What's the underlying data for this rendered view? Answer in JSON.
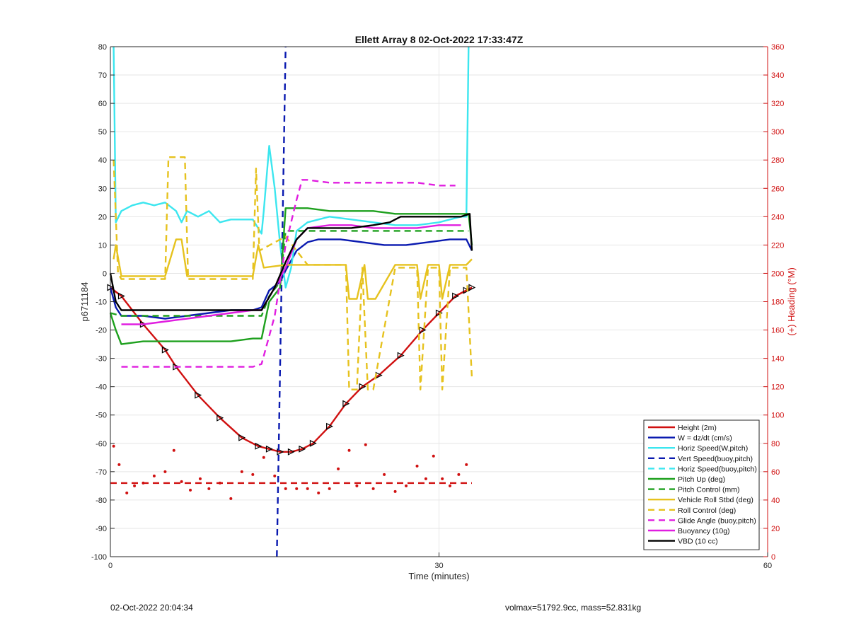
{
  "chart_data": {
    "type": "line",
    "title": "Ellett Array 8 02-Oct-2022 17:33:47Z",
    "xlabel": "Time (minutes)",
    "ylabel": "p6711184",
    "y2label": "(+) Heading (°M)",
    "xlim": [
      0,
      60
    ],
    "ylim": [
      -100,
      80
    ],
    "y2lim": [
      0,
      360
    ],
    "xticks": [
      "0",
      "30",
      "60"
    ],
    "yticks": [
      "80",
      "70",
      "60",
      "50",
      "40",
      "30",
      "20",
      "10",
      "0",
      "-10",
      "-20",
      "-30",
      "-40",
      "-50",
      "-60",
      "-70",
      "-80",
      "-90",
      "-100"
    ],
    "y2ticks": [
      "360",
      "340",
      "320",
      "300",
      "280",
      "260",
      "240",
      "220",
      "200",
      "180",
      "160",
      "140",
      "120",
      "100",
      "80",
      "60",
      "40",
      "20",
      "0"
    ],
    "grid": true,
    "legend_position": "bottom-right",
    "colors": {
      "red": "#d01010",
      "blue": "#0a1ab0",
      "cyan": "#3ce6ef",
      "green": "#1ea01e",
      "yellow": "#e6c21e",
      "magenta": "#e01ee0",
      "black": "#000000",
      "axis_right": "#d01010"
    },
    "series": [
      {
        "name": "Height (2m)",
        "color": "#d01010",
        "style": "solid",
        "marker": "triangle",
        "x": [
          0,
          1,
          3,
          5,
          6,
          8,
          10,
          12,
          13.5,
          14.5,
          15.5,
          16.5,
          17.5,
          18.5,
          20,
          21.5,
          23,
          24.5,
          26.5,
          28.5,
          30,
          31.5,
          32.5,
          33
        ],
        "y": [
          -5,
          -8,
          -18,
          -27,
          -33,
          -43,
          -51,
          -58,
          -61,
          -62,
          -63,
          -63,
          -62,
          -60,
          -54,
          -46,
          -40,
          -36,
          -29,
          -20,
          -14,
          -8,
          -6,
          -5
        ]
      },
      {
        "name": "W = dz/dt (cm/s)",
        "color": "#0a1ab0",
        "style": "solid",
        "x": [
          0,
          0.5,
          1,
          3,
          5,
          7,
          9,
          11,
          13,
          13.8,
          14.5,
          15.5,
          16,
          17,
          18,
          19,
          21,
          23,
          25,
          27,
          29,
          31,
          32.5,
          33
        ],
        "y": [
          -5,
          -12,
          -15,
          -15,
          -16,
          -15,
          -14,
          -13,
          -13,
          -12,
          -6,
          -3,
          1,
          8,
          11,
          12,
          12,
          11,
          10,
          10,
          11,
          12,
          12,
          8
        ]
      },
      {
        "name": "Horiz Speed(W,pitch)",
        "color": "#3ce6ef",
        "style": "solid",
        "x": [
          0.3,
          0.5,
          1,
          2,
          3,
          4,
          5,
          6,
          6.5,
          7,
          8,
          9,
          10,
          11,
          12,
          13,
          13.8,
          14,
          14.5,
          15,
          15.5,
          16,
          16.5,
          17,
          18,
          20,
          22,
          24,
          26,
          28,
          30,
          31,
          32,
          32.5,
          32.7
        ],
        "y": [
          80,
          18,
          22,
          24,
          25,
          24,
          25,
          22,
          18,
          22,
          20,
          22,
          18,
          19,
          19,
          19,
          14,
          22,
          45,
          30,
          10,
          -5,
          2,
          15,
          18,
          20,
          19,
          18,
          17,
          17,
          18,
          19,
          20,
          20,
          80
        ]
      },
      {
        "name": "Vert Speed(buoy,pitch)",
        "color": "#0a1ab0",
        "style": "dashed",
        "x": [
          15.2,
          16.0
        ],
        "y": [
          -100,
          80
        ]
      },
      {
        "name": "Horiz Speed(buoy,pitch)",
        "color": "#3ce6ef",
        "style": "dashed",
        "x": [
          15.6,
          16.0
        ],
        "y": [
          0,
          3
        ]
      },
      {
        "name": "Pitch Up (deg)",
        "color": "#1ea01e",
        "style": "solid",
        "x": [
          0,
          0.5,
          1,
          3,
          5,
          7,
          9,
          11,
          13,
          13.8,
          14.5,
          15.5,
          16,
          17,
          18,
          20,
          22,
          24,
          26,
          28,
          30,
          32,
          32.7,
          33
        ],
        "y": [
          -14,
          -20,
          -25,
          -24,
          -24,
          -24,
          -24,
          -24,
          -23,
          -23,
          -10,
          -5,
          23,
          23,
          23,
          22,
          22,
          22,
          21,
          21,
          21,
          21,
          21,
          10
        ]
      },
      {
        "name": "Pitch Control (mm)",
        "color": "#1ea01e",
        "style": "dashed",
        "x": [
          0,
          1,
          13.8,
          14.5,
          15.5,
          16,
          17,
          32.7
        ],
        "y": [
          -14,
          -15,
          -15,
          -8,
          -3,
          15,
          15,
          15
        ]
      },
      {
        "name": "Vehicle Roll Stbd (deg)",
        "color": "#e6c21e",
        "style": "solid",
        "x": [
          0.3,
          0.5,
          1,
          5,
          6,
          6.5,
          7,
          13,
          13.5,
          14,
          16,
          18,
          20,
          21.5,
          21.8,
          22.5,
          23.2,
          23.5,
          24.2,
          26,
          28,
          28.3,
          29,
          30,
          30.3,
          31,
          32.5,
          33
        ],
        "y": [
          5,
          10,
          -1,
          -1,
          12,
          12,
          -1,
          -1,
          10,
          2,
          3,
          3,
          3,
          3,
          -9,
          -9,
          3,
          -9,
          -9,
          3,
          3,
          -9,
          3,
          3,
          -9,
          3,
          3,
          5
        ]
      },
      {
        "name": "Roll Control (deg)",
        "color": "#e6c21e",
        "style": "dashed",
        "x": [
          0.3,
          0.7,
          1,
          5,
          5.3,
          6.8,
          7.1,
          13,
          13.3,
          13.6,
          16,
          18,
          21.5,
          21.8,
          22.5,
          23,
          23.5,
          24,
          26,
          28,
          28.3,
          29,
          30,
          30.3,
          31,
          32.5,
          33
        ],
        "y": [
          40,
          0,
          -2,
          -2,
          41,
          41,
          -2,
          -2,
          37,
          8,
          13,
          3,
          3,
          -41,
          -41,
          2,
          -41,
          -41,
          2,
          2,
          -41,
          2,
          2,
          -41,
          2,
          2,
          -37
        ]
      },
      {
        "name": "Glide Angle (buoy,pitch)",
        "color": "#e01ee0",
        "style": "dashed",
        "x": [
          1,
          3,
          5,
          7,
          9,
          11,
          13,
          13.8,
          15,
          16,
          17,
          17.5,
          18,
          20,
          22,
          24,
          26,
          28,
          30,
          31.5
        ],
        "y": [
          -33,
          -33,
          -33,
          -33,
          -33,
          -33,
          -33,
          -32,
          -15,
          10,
          26,
          33,
          33,
          32,
          32,
          32,
          32,
          32,
          31,
          31
        ]
      },
      {
        "name": "Buoyancy (10g)",
        "color": "#e01ee0",
        "style": "solid",
        "x": [
          1,
          3,
          5,
          7,
          9,
          11,
          13,
          13.8,
          15,
          16,
          17,
          18,
          20,
          22,
          24,
          26,
          28,
          30,
          32
        ],
        "y": [
          -18,
          -18,
          -17,
          -16,
          -15,
          -14,
          -13,
          -13,
          -5,
          2,
          12,
          16,
          17,
          17,
          16,
          16,
          16,
          17,
          17
        ]
      },
      {
        "name": "VBD (10 cc)",
        "color": "#000000",
        "style": "solid",
        "x": [
          0,
          0.5,
          1,
          3,
          5,
          7,
          9,
          11,
          13,
          13.8,
          15,
          16,
          17,
          18,
          20,
          22,
          24,
          25.5,
          26.5,
          28,
          30,
          32,
          32.8,
          33
        ],
        "y": [
          0,
          -10,
          -13,
          -13,
          -13,
          -13,
          -13,
          -13,
          -13,
          -13,
          -5,
          4,
          12,
          16,
          16,
          16,
          17,
          18,
          20,
          20,
          20,
          20,
          21,
          8
        ]
      },
      {
        "name": "",
        "color": "#d01010",
        "style": "dotted",
        "axis": "right",
        "x": [
          0.3,
          0.8,
          1.5,
          2.2,
          3,
          4,
          5,
          5.8,
          6.5,
          7.3,
          8.2,
          9,
          10,
          11,
          12,
          13,
          14,
          15,
          16,
          17,
          18,
          19,
          20,
          20.8,
          21.8,
          22.5,
          23.3,
          24,
          25,
          26,
          27,
          28,
          28.8,
          29.5,
          30.3,
          31,
          31.8,
          32.5
        ],
        "y": [
          78,
          65,
          45,
          50,
          52,
          57,
          60,
          75,
          53,
          47,
          55,
          48,
          52,
          41,
          60,
          58,
          70,
          57,
          48,
          48,
          48,
          45,
          48,
          62,
          75,
          50,
          79,
          48,
          58,
          46,
          50,
          64,
          55,
          71,
          55,
          50,
          58,
          65
        ]
      },
      {
        "name": "",
        "color": "#d01010",
        "style": "dashed",
        "axis": "right",
        "x": [
          0,
          33
        ],
        "y": [
          52,
          52
        ]
      }
    ]
  },
  "footer": {
    "left": "02-Oct-2022 20:04:34",
    "right": "volmax=51792.9cc, mass=52.831kg"
  }
}
